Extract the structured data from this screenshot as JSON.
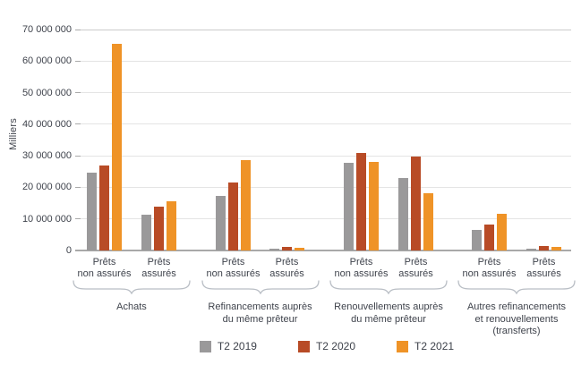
{
  "colors": {
    "text": "#3f434c",
    "gridline": "#e4e4e4",
    "gridline_top": "#cbcbcb",
    "axis": "#a9a9a9",
    "brace": "#b9bec5"
  },
  "chart_data": {
    "type": "bar",
    "title": "",
    "xlabel": "",
    "ylabel": "Milliers",
    "ylim": [
      0,
      70000000
    ],
    "ytick_step": 10000000,
    "ytick_labels": [
      "0",
      "10 000 000",
      "20 000 000",
      "30 000 000",
      "40 000 000",
      "50 000 000",
      "60 000 000",
      "70 000 000"
    ],
    "grid": true,
    "legend_position": "bottom",
    "subgroups": [
      {
        "lines": [
          "Prêts",
          "non assurés"
        ]
      },
      {
        "lines": [
          "Prêts",
          "assurés"
        ]
      },
      {
        "lines": [
          "Prêts",
          "non assurés"
        ]
      },
      {
        "lines": [
          "Prêts",
          "assurés"
        ]
      },
      {
        "lines": [
          "Prêts",
          "non assurés"
        ]
      },
      {
        "lines": [
          "Prêts",
          "assurés"
        ]
      },
      {
        "lines": [
          "Prêts",
          "non assurés"
        ]
      },
      {
        "lines": [
          "Prêts",
          "assurés"
        ]
      }
    ],
    "categories": [
      {
        "lines": [
          "Achats"
        ]
      },
      {
        "lines": [
          "Refinancements auprès",
          "du même prêteur"
        ]
      },
      {
        "lines": [
          "Renouvellements auprès",
          "du même prêteur"
        ]
      },
      {
        "lines": [
          "Autres refinancements",
          "et renouvellements",
          "(transferts)"
        ]
      }
    ],
    "series": [
      {
        "name": "T2 2019",
        "color": "#9a999a",
        "values": [
          24600000,
          11200000,
          17300000,
          600000,
          27800000,
          23000000,
          6400000,
          700000
        ]
      },
      {
        "name": "T2 2020",
        "color": "#b84b26",
        "values": [
          27000000,
          13900000,
          21600000,
          1100000,
          30800000,
          29800000,
          8300000,
          1400000
        ]
      },
      {
        "name": "T2 2021",
        "color": "#ef9327",
        "values": [
          65500000,
          15600000,
          28500000,
          900000,
          28000000,
          18100000,
          11500000,
          1100000
        ]
      }
    ]
  }
}
